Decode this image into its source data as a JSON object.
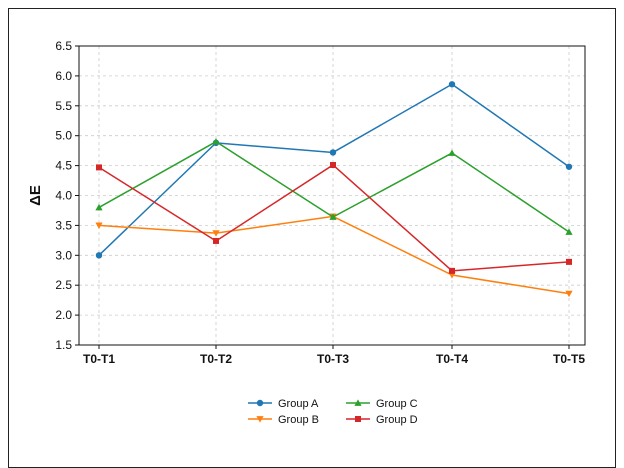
{
  "chart_data": {
    "type": "line",
    "title": "",
    "xlabel": "",
    "ylabel": "ΔE",
    "categories": [
      "T0-T1",
      "T0-T2",
      "T0-T3",
      "T0-T4",
      "T0-T5"
    ],
    "yticks": [
      "1.5",
      "2.0",
      "2.5",
      "3.0",
      "3.5",
      "4.0",
      "4.5",
      "5.0",
      "5.5",
      "6.0",
      "6.5"
    ],
    "ylim": [
      1.5,
      6.5
    ],
    "grid": true,
    "legend_placement": "bottom-center",
    "series": [
      {
        "name": "Group A",
        "color": "#1f77b4",
        "marker": "circle",
        "values": [
          3.0,
          4.88,
          4.72,
          5.86,
          4.48
        ]
      },
      {
        "name": "Group B",
        "color": "#ff7f0e",
        "marker": "triangle-down",
        "values": [
          3.5,
          3.37,
          3.65,
          2.67,
          2.36
        ]
      },
      {
        "name": "Group C",
        "color": "#2ca02c",
        "marker": "triangle-up",
        "values": [
          3.8,
          4.9,
          3.64,
          4.71,
          3.39
        ]
      },
      {
        "name": "Group D",
        "color": "#d62728",
        "marker": "square",
        "values": [
          4.47,
          3.24,
          4.51,
          2.74,
          2.89
        ]
      }
    ]
  }
}
